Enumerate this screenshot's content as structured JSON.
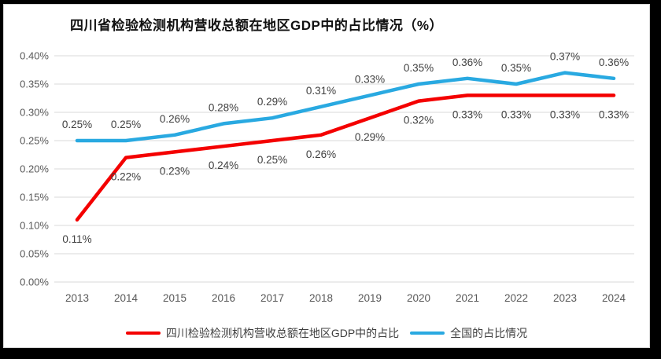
{
  "chart_data": {
    "type": "line",
    "title": "四川省检验检测机构营收总额在地区GDP中的占比情况（%）",
    "categories": [
      "2013",
      "2014",
      "2015",
      "2016",
      "2017",
      "2018",
      "2019",
      "2020",
      "2021",
      "2022",
      "2023",
      "2024"
    ],
    "series": [
      {
        "name": "四川检验检测机构营收总额在地区GDP中的占比",
        "color": "#f40000",
        "values": [
          0.11,
          0.22,
          0.23,
          0.24,
          0.25,
          0.26,
          0.29,
          0.32,
          0.33,
          0.33,
          0.33,
          0.33
        ],
        "labels": [
          "0.11%",
          "0.22%",
          "0.23%",
          "0.24%",
          "0.25%",
          "0.26%",
          "0.29%",
          "0.32%",
          "0.33%",
          "0.33%",
          "0.33%",
          "0.33%"
        ],
        "label_position": "below"
      },
      {
        "name": "全国的占比情况",
        "color": "#29a9e1",
        "values": [
          0.25,
          0.25,
          0.26,
          0.28,
          0.29,
          0.31,
          0.33,
          0.35,
          0.36,
          0.35,
          0.37,
          0.36
        ],
        "labels": [
          "0.25%",
          "0.25%",
          "0.26%",
          "0.28%",
          "0.29%",
          "0.31%",
          "0.33%",
          "0.35%",
          "0.36%",
          "0.35%",
          "0.37%",
          "0.36%"
        ],
        "label_position": "above"
      }
    ],
    "y_ticks": [
      "0.00%",
      "0.05%",
      "0.10%",
      "0.15%",
      "0.20%",
      "0.25%",
      "0.30%",
      "0.35%",
      "0.40%"
    ],
    "y_tick_values": [
      0.0,
      0.05,
      0.1,
      0.15,
      0.2,
      0.25,
      0.3,
      0.35,
      0.4
    ],
    "ylim": [
      0.0,
      0.4
    ],
    "xlabel": "",
    "ylabel": "",
    "grid": true,
    "grid_color": "#d9d9d9",
    "legend_position": "bottom"
  }
}
